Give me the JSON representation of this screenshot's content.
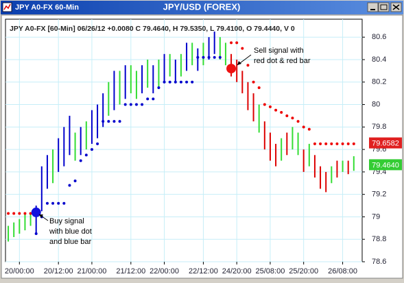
{
  "window": {
    "title": "JPY A0-FX 60-Min"
  },
  "chart_data": {
    "type": "ohlc",
    "title": "JPY/USD (FOREX)",
    "header": "JPY A0-FX [60-Min] 06/26/12 +0.0080 C 79.4640, H 79.5350, L 79.4100, O 79.4440, V 0",
    "xlim": [
      -0.5,
      63.5
    ],
    "xticks": [
      {
        "value": 2,
        "label": "20/00:00"
      },
      {
        "value": 9,
        "label": "20/12:00"
      },
      {
        "value": 15,
        "label": "21/00:00"
      },
      {
        "value": 22,
        "label": "21/12:00"
      },
      {
        "value": 28,
        "label": "22/00:00"
      },
      {
        "value": 35,
        "label": "22/12:00"
      },
      {
        "value": 41,
        "label": "24/20:00"
      },
      {
        "value": 47,
        "label": "25/08:00"
      },
      {
        "value": 53,
        "label": "25/20:00"
      },
      {
        "value": 60,
        "label": "26/08:00"
      }
    ],
    "ylim": [
      78.6,
      80.76
    ],
    "yticks": [
      78.6,
      78.8,
      79,
      79.2,
      79.4,
      79.6,
      79.8,
      80,
      80.2,
      80.4,
      80.6
    ],
    "grid": true,
    "grid_color": "#c6eef8",
    "high": [
      78.92,
      78.95,
      78.98,
      79.02,
      79.04,
      79.1,
      79.45,
      79.55,
      79.6,
      79.7,
      79.8,
      79.9,
      79.75,
      79.8,
      79.85,
      79.95,
      80.0,
      80.1,
      80.2,
      80.3,
      80.3,
      80.35,
      80.35,
      80.3,
      80.35,
      80.4,
      80.35,
      80.4,
      80.45,
      80.45,
      80.4,
      80.45,
      80.55,
      80.55,
      80.5,
      80.55,
      80.6,
      80.65,
      80.6,
      80.55,
      80.45,
      80.4,
      80.3,
      80.2,
      80.1,
      80.0,
      79.85,
      79.75,
      79.65,
      79.7,
      79.75,
      79.8,
      79.75,
      79.6,
      79.65,
      79.55,
      79.45,
      79.4,
      79.45,
      79.5,
      79.5,
      79.5,
      79.54
    ],
    "low": [
      78.78,
      78.82,
      78.85,
      78.88,
      78.92,
      78.85,
      79.05,
      79.25,
      79.3,
      79.4,
      79.45,
      79.55,
      79.5,
      79.55,
      79.6,
      79.65,
      79.7,
      79.8,
      79.9,
      79.95,
      80.0,
      80.05,
      80.1,
      80.05,
      80.1,
      80.15,
      80.1,
      80.15,
      80.2,
      80.25,
      80.2,
      80.25,
      80.3,
      80.35,
      80.3,
      80.35,
      80.4,
      80.45,
      80.4,
      80.35,
      80.25,
      80.2,
      80.1,
      79.95,
      79.85,
      79.75,
      79.6,
      79.5,
      79.45,
      79.5,
      79.55,
      79.6,
      79.55,
      79.4,
      79.45,
      79.35,
      79.25,
      79.22,
      79.3,
      79.35,
      79.4,
      79.38,
      79.41
    ],
    "bar_colors": [
      "#33dd33",
      "#33dd33",
      "#33dd33",
      "#33dd33",
      "#33dd33",
      "#0000cc",
      "#0000cc",
      "#0000cc",
      "#33dd33",
      "#0000cc",
      "#0000cc",
      "#0000cc",
      "#33dd33",
      "#0000cc",
      "#33dd33",
      "#0000cc",
      "#0000cc",
      "#0000cc",
      "#33dd33",
      "#0000cc",
      "#33dd33",
      "#0000cc",
      "#33dd33",
      "#33dd33",
      "#0000cc",
      "#33dd33",
      "#0000cc",
      "#33dd33",
      "#0000cc",
      "#33dd33",
      "#0000cc",
      "#33dd33",
      "#0000cc",
      "#33dd33",
      "#0000cc",
      "#33dd33",
      "#0000cc",
      "#0000cc",
      "#33dd33",
      "#33dd33",
      "#dd0000",
      "#dd0000",
      "#dd0000",
      "#dd0000",
      "#dd0000",
      "#33dd33",
      "#dd0000",
      "#dd0000",
      "#dd0000",
      "#33dd33",
      "#dd0000",
      "#33dd33",
      "#33dd33",
      "#dd0000",
      "#33dd33",
      "#dd0000",
      "#dd0000",
      "#dd0000",
      "#33dd33",
      "#dd0000",
      "#33dd33",
      "#dd0000",
      "#33dd33"
    ],
    "dot_series": [
      {
        "color": "#0000cc",
        "values": [
          null,
          null,
          null,
          null,
          null,
          78.85,
          79.0,
          79.12,
          79.12,
          79.12,
          79.12,
          79.28,
          79.32,
          79.5,
          79.55,
          79.6,
          79.65,
          79.85,
          79.85,
          79.85,
          79.85,
          80.0,
          80.0,
          80.0,
          80.0,
          80.05,
          80.05,
          80.15,
          80.2,
          80.2,
          80.2,
          80.2,
          80.2,
          80.2,
          80.42,
          80.42,
          80.42,
          80.42,
          80.42,
          null,
          null,
          null,
          null,
          null,
          null,
          null,
          null,
          null,
          null,
          null,
          null,
          null,
          null,
          null,
          null,
          null,
          null,
          null,
          null,
          null,
          null,
          null,
          null
        ]
      },
      {
        "color": "#ee0000",
        "values": [
          79.03,
          79.03,
          79.03,
          79.03,
          79.03,
          null,
          null,
          null,
          null,
          null,
          null,
          null,
          null,
          null,
          null,
          null,
          null,
          null,
          null,
          null,
          null,
          null,
          null,
          null,
          null,
          null,
          null,
          null,
          null,
          null,
          null,
          null,
          null,
          null,
          null,
          null,
          null,
          null,
          null,
          null,
          80.55,
          80.55,
          80.5,
          80.35,
          80.2,
          80.15,
          80.0,
          79.98,
          79.95,
          79.93,
          79.9,
          79.88,
          79.85,
          79.8,
          79.78,
          79.65,
          79.65,
          79.65,
          79.65,
          79.65,
          79.65,
          79.65,
          79.65
        ]
      }
    ],
    "signals": [
      {
        "x": 5,
        "y": 79.04,
        "color": "#1010dd",
        "lines": [
          "Buy signal",
          "with blue dot",
          "and blue bar"
        ]
      },
      {
        "x": 40,
        "y": 80.32,
        "color": "#ee1111",
        "lines": [
          "Sell signal with",
          "red dot & red bar"
        ]
      }
    ],
    "price_labels": [
      {
        "value": 79.6582,
        "color": "#e02020"
      },
      {
        "value": {
          "value": 79.464,
          "label": "79.4640"
        },
        "color": "#33cc33"
      }
    ]
  }
}
